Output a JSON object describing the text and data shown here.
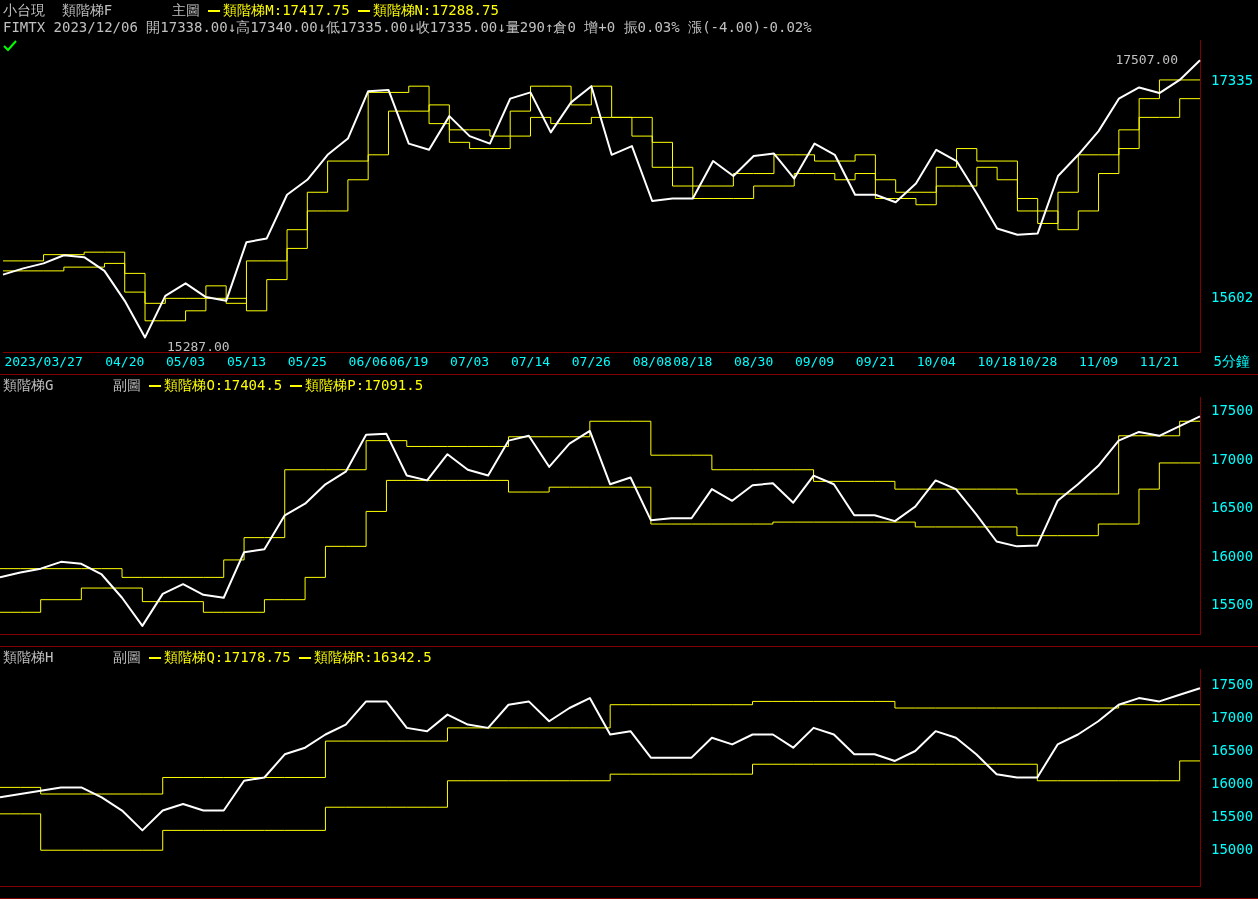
{
  "chart_data": [
    {
      "type": "line",
      "title": "小台現  類階梯F",
      "subtitle": "FIMTX 2023/12/06 開17338.00↓高17340.00↓低17335.00↓收17335.00↓量290↑倉0 增+0 振0.03% 漲(-4.00)-0.02%",
      "legend_title": "主圖",
      "legend": "top left",
      "grid": false,
      "categories": [
        null,
        null,
        "2023/03/27",
        null,
        null,
        null,
        "04/20",
        null,
        null,
        "05/03",
        null,
        null,
        "05/13",
        null,
        null,
        "05/25",
        null,
        null,
        "06/06",
        null,
        "06/19",
        null,
        null,
        "07/03",
        null,
        null,
        "07/14",
        null,
        null,
        "07/26",
        null,
        null,
        "08/08",
        null,
        "08/18",
        null,
        null,
        "08/30",
        null,
        null,
        "09/09",
        null,
        null,
        "09/21",
        null,
        null,
        "10/04",
        null,
        null,
        "10/18",
        null,
        "10/28",
        null,
        null,
        "11/09",
        null,
        null,
        "11/21",
        null,
        null
      ],
      "ylim": [
        15170,
        17670
      ],
      "yticks": [
        15602,
        17335
      ],
      "series": [
        {
          "color": "#ffffff",
          "values": [
            15790,
            15840,
            15880,
            15945,
            15930,
            15820,
            15580,
            15287,
            15620,
            15720,
            15610,
            15580,
            16050,
            16080,
            16430,
            16550,
            16750,
            16880,
            17260,
            17270,
            16840,
            16790,
            17060,
            16900,
            16840,
            17200,
            17250,
            16930,
            17170,
            17300,
            16750,
            16820,
            16380,
            16400,
            16400,
            16700,
            16580,
            16740,
            16760,
            16560,
            16840,
            16750,
            16430,
            16430,
            16370,
            16520,
            16790,
            16700,
            16440,
            16160,
            16110,
            16120,
            16580,
            16750,
            16940,
            17200,
            17290,
            17245,
            17350,
            17507
          ]
        },
        {
          "type": "step",
          "name": "類階梯M:17417.75",
          "color": "#ffff00",
          "values": [
            15900,
            15900,
            15950,
            15950,
            15970,
            15970,
            15800,
            15560,
            15600,
            15600,
            15700,
            15560,
            15900,
            15900,
            16150,
            16450,
            16700,
            16700,
            17250,
            17250,
            17300,
            17000,
            16950,
            16950,
            16900,
            17100,
            17300,
            17300,
            17150,
            17300,
            17050,
            17050,
            16850,
            16500,
            16500,
            16500,
            16600,
            16600,
            16750,
            16750,
            16700,
            16700,
            16750,
            16550,
            16450,
            16450,
            16650,
            16800,
            16700,
            16700,
            16400,
            16200,
            16450,
            16750,
            16750,
            16950,
            17200,
            17350,
            17350,
            17350
          ]
        },
        {
          "type": "step",
          "name": "類階梯N:17288.75",
          "color": "#ffff00",
          "values": [
            15820,
            15820,
            15820,
            15850,
            15850,
            15880,
            15650,
            15420,
            15420,
            15500,
            15600,
            15600,
            15500,
            15750,
            16000,
            16300,
            16300,
            16550,
            16750,
            17100,
            17100,
            17150,
            16850,
            16800,
            16800,
            16900,
            17050,
            17000,
            17000,
            17050,
            17050,
            16900,
            16650,
            16650,
            16400,
            16400,
            16400,
            16500,
            16500,
            16600,
            16600,
            16550,
            16600,
            16400,
            16400,
            16350,
            16500,
            16500,
            16650,
            16550,
            16300,
            16300,
            16150,
            16300,
            16600,
            16800,
            17050,
            17050,
            17200,
            17200
          ]
        }
      ],
      "annotations": [
        "17507.00",
        "15287.00"
      ],
      "xlabel": "5分鐘"
    },
    {
      "type": "line",
      "title": "類階梯G",
      "legend_title": "副圖",
      "legend": "top left",
      "grid": false,
      "tick_labels": "y",
      "categories": [
        null,
        null,
        null,
        null,
        null,
        null,
        null,
        null,
        null,
        null,
        null,
        null,
        null,
        null,
        null,
        null,
        null,
        null,
        null,
        null,
        null,
        null,
        null,
        null,
        null,
        null,
        null,
        null,
        null,
        null,
        null,
        null,
        null,
        null,
        null,
        null,
        null,
        null,
        null,
        null,
        null,
        null,
        null,
        null,
        null,
        null,
        null,
        null,
        null,
        null,
        null,
        null,
        null,
        null,
        null,
        null,
        null,
        null,
        null,
        null
      ],
      "ylim": [
        15200,
        17650
      ],
      "yticks": [
        15500,
        16000,
        16500,
        17000,
        17500
      ],
      "series": [
        {
          "color": "#ffffff",
          "values": [
            15790,
            15840,
            15880,
            15950,
            15930,
            15820,
            15580,
            15290,
            15620,
            15720,
            15610,
            15580,
            16050,
            16080,
            16430,
            16550,
            16750,
            16880,
            17260,
            17270,
            16840,
            16790,
            17060,
            16900,
            16840,
            17200,
            17250,
            16930,
            17170,
            17300,
            16750,
            16820,
            16380,
            16400,
            16400,
            16700,
            16580,
            16740,
            16760,
            16560,
            16840,
            16750,
            16430,
            16430,
            16370,
            16520,
            16790,
            16700,
            16440,
            16160,
            16110,
            16120,
            16580,
            16750,
            16940,
            17200,
            17290,
            17250,
            17350,
            17450
          ]
        },
        {
          "type": "step",
          "name": "類階梯O:17404.5",
          "color": "#ffff00",
          "values": [
            15880,
            15880,
            15880,
            15880,
            15880,
            15880,
            15790,
            15790,
            15790,
            15790,
            15790,
            15970,
            16200,
            16200,
            16900,
            16900,
            16900,
            16900,
            17200,
            17200,
            17140,
            17140,
            17140,
            17140,
            17140,
            17240,
            17240,
            17240,
            17240,
            17400,
            17400,
            17400,
            17050,
            17050,
            17050,
            16900,
            16900,
            16900,
            16900,
            16900,
            16780,
            16780,
            16780,
            16780,
            16700,
            16700,
            16700,
            16700,
            16700,
            16700,
            16650,
            16650,
            16650,
            16650,
            16650,
            17250,
            17250,
            17250,
            17400,
            17400
          ]
        },
        {
          "type": "step",
          "name": "類階梯P:17091.5",
          "color": "#ffff00",
          "values": [
            15430,
            15430,
            15560,
            15560,
            15680,
            15680,
            15680,
            15540,
            15540,
            15540,
            15430,
            15430,
            15430,
            15560,
            15560,
            15790,
            16110,
            16110,
            16470,
            16790,
            16790,
            16790,
            16790,
            16790,
            16790,
            16670,
            16670,
            16720,
            16720,
            16720,
            16720,
            16720,
            16340,
            16340,
            16340,
            16340,
            16340,
            16340,
            16360,
            16360,
            16360,
            16360,
            16360,
            16360,
            16360,
            16310,
            16310,
            16310,
            16310,
            16310,
            16220,
            16220,
            16220,
            16220,
            16340,
            16340,
            16700,
            16970,
            16970,
            16970
          ]
        }
      ]
    },
    {
      "type": "line",
      "title": "類階梯H",
      "legend_title": "副圖",
      "legend": "top left",
      "grid": false,
      "tick_labels": "y",
      "categories": [
        null,
        null,
        null,
        null,
        null,
        null,
        null,
        null,
        null,
        null,
        null,
        null,
        null,
        null,
        null,
        null,
        null,
        null,
        null,
        null,
        null,
        null,
        null,
        null,
        null,
        null,
        null,
        null,
        null,
        null,
        null,
        null,
        null,
        null,
        null,
        null,
        null,
        null,
        null,
        null,
        null,
        null,
        null,
        null,
        null,
        null,
        null,
        null,
        null,
        null,
        null,
        null,
        null,
        null,
        null,
        null,
        null,
        null,
        null,
        null
      ],
      "ylim": [
        14450,
        17740
      ],
      "yticks": [
        15000,
        15500,
        16000,
        16500,
        17000,
        17500
      ],
      "series": [
        {
          "color": "#ffffff",
          "values": [
            15800,
            15850,
            15900,
            15950,
            15950,
            15800,
            15600,
            15300,
            15600,
            15700,
            15600,
            15600,
            16050,
            16100,
            16450,
            16550,
            16750,
            16900,
            17250,
            17250,
            16850,
            16800,
            17050,
            16900,
            16850,
            17200,
            17250,
            16950,
            17150,
            17300,
            16750,
            16800,
            16400,
            16400,
            16400,
            16700,
            16600,
            16750,
            16750,
            16550,
            16850,
            16750,
            16450,
            16450,
            16350,
            16500,
            16800,
            16700,
            16450,
            16150,
            16100,
            16100,
            16600,
            16750,
            16950,
            17200,
            17300,
            17250,
            17350,
            17450
          ]
        },
        {
          "type": "step",
          "name": "類階梯Q:17178.75",
          "color": "#ffff00",
          "values": [
            15950,
            15950,
            15850,
            15850,
            15850,
            15850,
            15850,
            15850,
            16100,
            16100,
            16100,
            16100,
            16100,
            16100,
            16100,
            16100,
            16650,
            16650,
            16650,
            16650,
            16650,
            16650,
            16850,
            16850,
            16850,
            16850,
            16850,
            16850,
            16850,
            16850,
            17200,
            17200,
            17200,
            17200,
            17200,
            17200,
            17200,
            17250,
            17250,
            17250,
            17250,
            17250,
            17250,
            17250,
            17150,
            17150,
            17150,
            17150,
            17150,
            17150,
            17150,
            17150,
            17150,
            17150,
            17150,
            17200,
            17200,
            17200,
            17200,
            17200
          ]
        },
        {
          "type": "step",
          "name": "類階梯R:16342.5",
          "color": "#ffff00",
          "values": [
            15550,
            15550,
            15000,
            15000,
            15000,
            15000,
            15000,
            15000,
            15300,
            15300,
            15300,
            15300,
            15300,
            15300,
            15300,
            15300,
            15650,
            15650,
            15650,
            15650,
            15650,
            15650,
            16050,
            16050,
            16050,
            16050,
            16050,
            16050,
            16050,
            16050,
            16150,
            16150,
            16150,
            16150,
            16150,
            16150,
            16150,
            16300,
            16300,
            16300,
            16300,
            16300,
            16300,
            16300,
            16300,
            16300,
            16300,
            16300,
            16300,
            16300,
            16300,
            16050,
            16050,
            16050,
            16050,
            16050,
            16050,
            16050,
            16350,
            16350
          ]
        }
      ]
    }
  ]
}
